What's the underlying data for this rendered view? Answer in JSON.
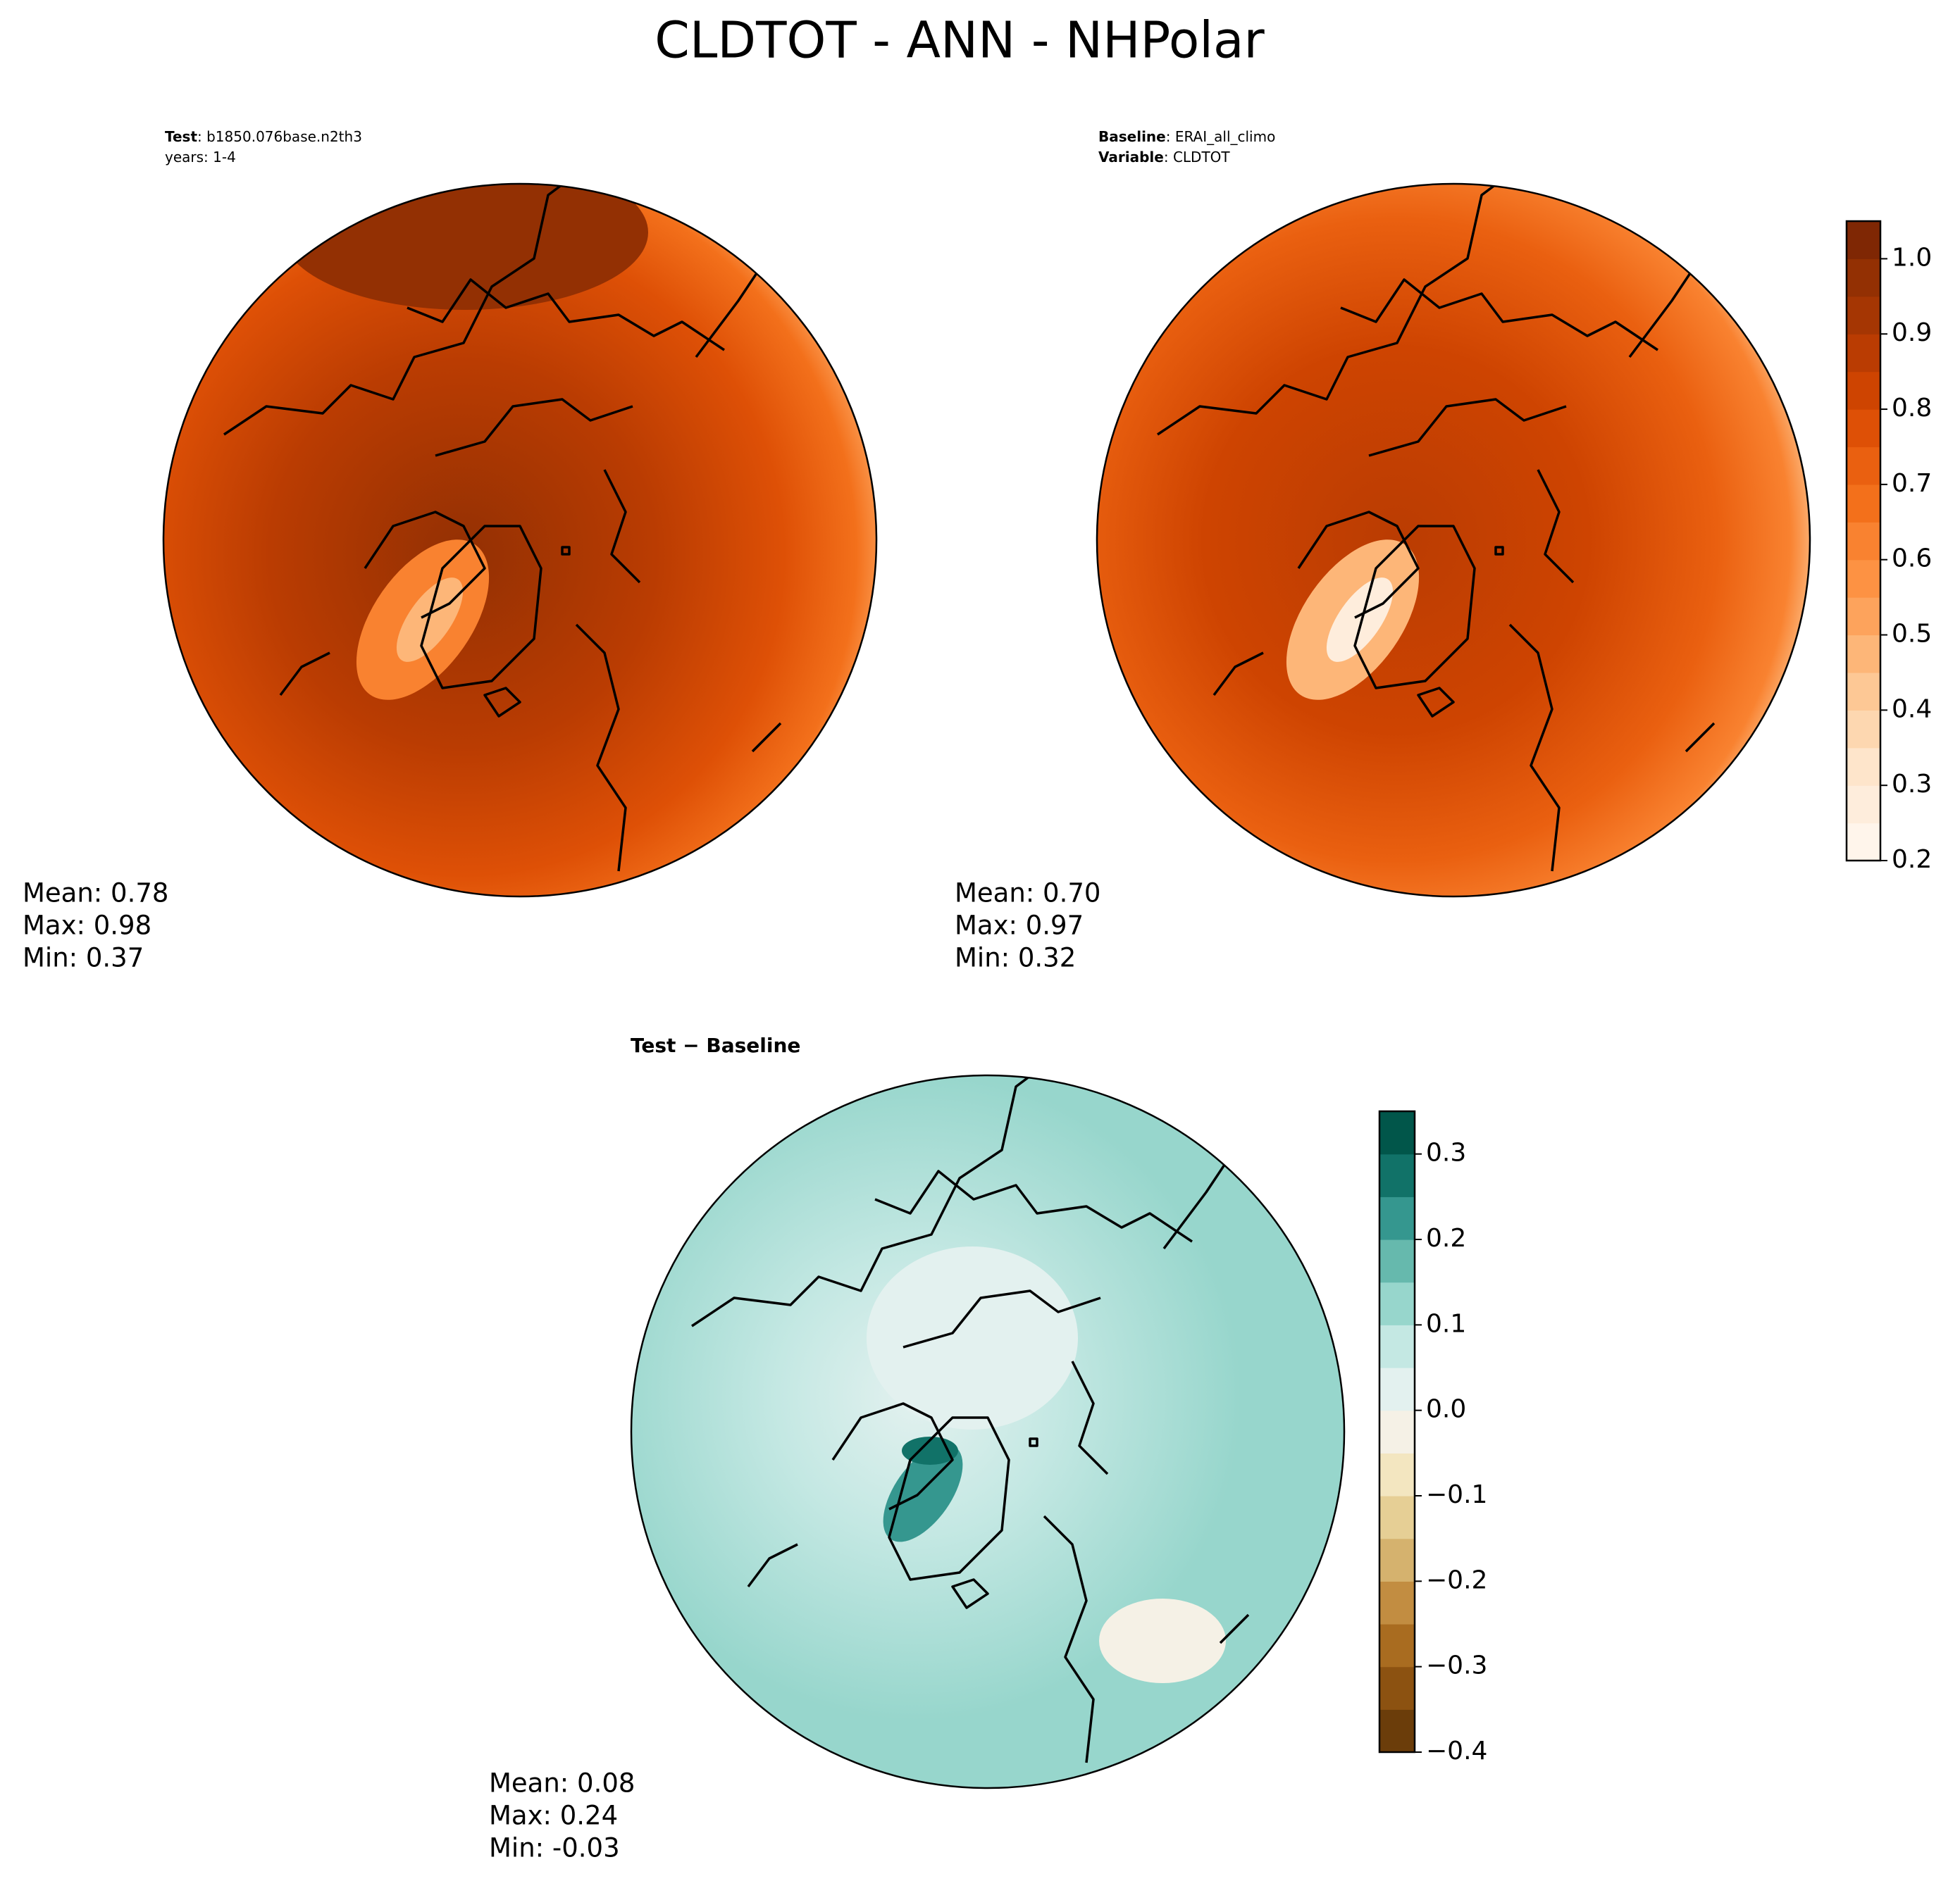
{
  "figure": {
    "title": "CLDTOT - ANN - NHPolar",
    "panels": [
      {
        "header": [
          {
            "label": "Test",
            "text": ": b1850.076base.n2th3"
          },
          {
            "text": "years: 1-4"
          }
        ],
        "stats": [
          "Mean:  0.78",
          "Max:  0.98",
          "Min:  0.37"
        ]
      },
      {
        "header": [
          {
            "label": "Baseline",
            "text": ": ERAI_all_climo"
          },
          {
            "label": "Variable",
            "text": ": CLDTOT"
          }
        ],
        "stats": [
          "Mean:  0.70",
          "Max:  0.97",
          "Min:  0.32"
        ]
      },
      {
        "header": [
          {
            "label": "Test − Baseline"
          }
        ],
        "stats": [
          "Mean:  0.08",
          "Max:  0.24",
          "Min: -0.03"
        ]
      }
    ],
    "colorbars": [
      {
        "lim": [
          0.2,
          1.05
        ],
        "ticks": [
          0.2,
          0.3,
          0.4,
          0.5,
          0.6,
          0.7,
          0.8,
          0.9,
          {
            "value": 1,
            "label": "1.0"
          }
        ],
        "colors": [
          "#fff5eb",
          "#feeddc",
          "#fee5cb",
          "#fdd7b0",
          "#fdc895",
          "#fdb678",
          "#fda35c",
          "#fd9243",
          "#f98230",
          "#f3701b",
          "#ea6010",
          "#de5006",
          "#ce4401",
          "#ba3c02",
          "#a53603",
          "#933003",
          "#7f2704"
        ]
      },
      {
        "lim": [
          -0.4,
          0.35
        ],
        "ticks": [
          {
            "value": -0.4,
            "label": "−0.4"
          },
          {
            "value": -0.3,
            "label": "−0.3"
          },
          {
            "value": -0.2,
            "label": "−0.2"
          },
          {
            "value": -0.1,
            "label": "−0.1"
          },
          {
            "value": 0,
            "label": "0.0"
          },
          0.1,
          0.2,
          0.3
        ],
        "colors": [
          "#6b3d0a",
          "#8c5211",
          "#a96c20",
          "#c28d41",
          "#d5b26e",
          "#e6cf95",
          "#f3e6c0",
          "#f5f1e6",
          "#e3f1ef",
          "#c4e8e3",
          "#97d6cc",
          "#66b9ad",
          "#35978f",
          "#117268",
          "#01564a"
        ]
      }
    ]
  }
}
